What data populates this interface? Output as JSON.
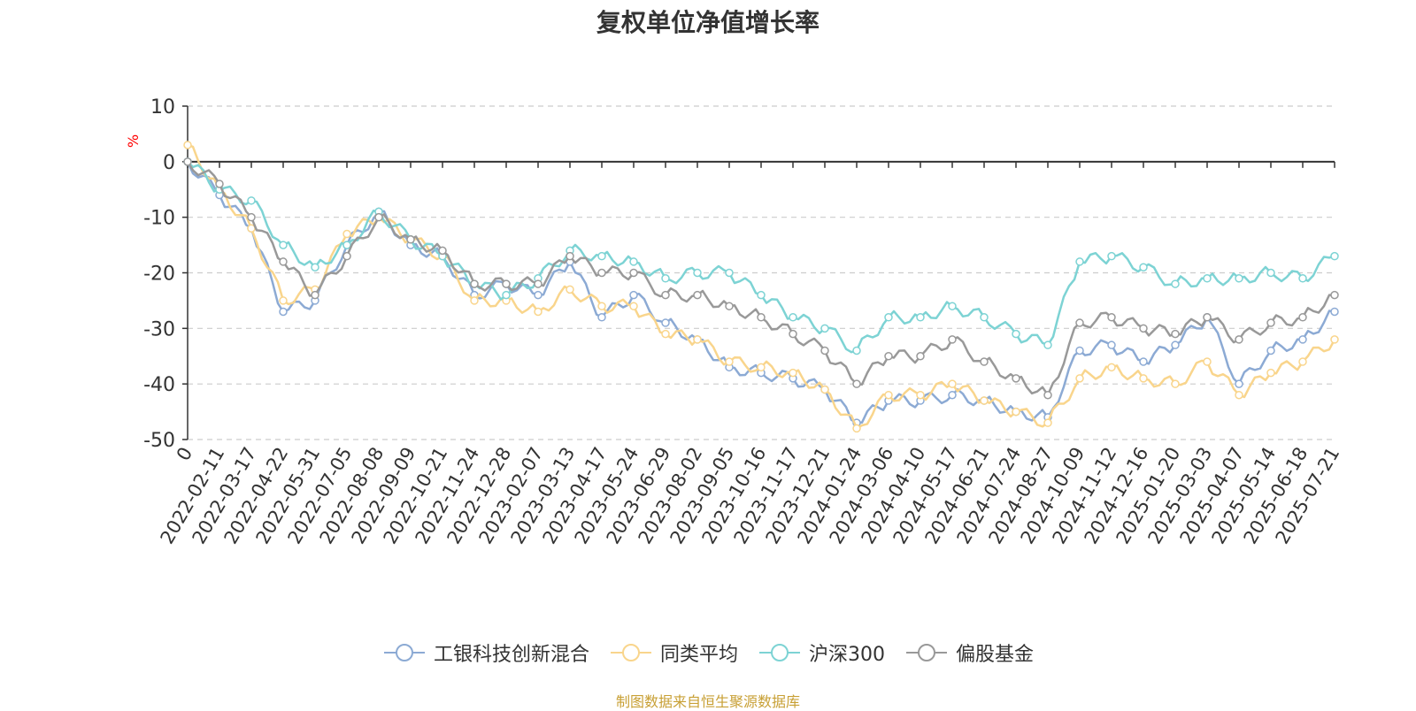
{
  "chart_data": {
    "type": "line",
    "title": "复权单位净值增长率",
    "unit_label": "%",
    "ylim": [
      -50,
      10
    ],
    "yticks": [
      "10",
      "0",
      "-10",
      "-20",
      "-30",
      "-40",
      "-50"
    ],
    "x_tick_labels": [
      "0",
      "2022-02-11",
      "2022-03-17",
      "2022-04-22",
      "2022-05-31",
      "2022-07-05",
      "2022-08-08",
      "2022-09-09",
      "2022-10-21",
      "2022-11-24",
      "2022-12-28",
      "2023-02-07",
      "2023-03-13",
      "2023-04-17",
      "2023-05-24",
      "2023-06-29",
      "2023-08-02",
      "2023-09-05",
      "2023-10-16",
      "2023-11-17",
      "2023-12-21",
      "2024-01-24",
      "2024-03-06",
      "2024-04-10",
      "2024-05-17",
      "2024-06-21",
      "2024-07-24",
      "2024-08-27",
      "2024-10-09",
      "2024-11-12",
      "2024-12-16",
      "2025-01-20",
      "2025-03-03",
      "2025-04-07",
      "2025-05-14",
      "2025-06-18",
      "2025-07-21"
    ],
    "grid": "horizontal-dashed",
    "legend_position": "bottom-center",
    "series": [
      {
        "name": "工银科技创新混合",
        "color": "#8caad4",
        "values": [
          0,
          -6,
          -12,
          -27,
          -25,
          -15,
          -9,
          -15,
          -17,
          -24,
          -22,
          -24,
          -18,
          -28,
          -24,
          -29,
          -32,
          -37,
          -38,
          -39,
          -41,
          -47,
          -43,
          -43,
          -42,
          -43,
          -45,
          -46,
          -34,
          -33,
          -36,
          -33,
          -28,
          -40,
          -34,
          -32,
          -27
        ]
      },
      {
        "name": "同类平均",
        "color": "#f9d58c",
        "values": [
          3,
          -5,
          -12,
          -25,
          -23,
          -13,
          -10,
          -14,
          -17,
          -25,
          -25,
          -27,
          -23,
          -26,
          -26,
          -31,
          -32,
          -36,
          -37,
          -38,
          -41,
          -48,
          -42,
          -42,
          -40,
          -43,
          -45,
          -47,
          -39,
          -37,
          -39,
          -40,
          -36,
          -42,
          -38,
          -36,
          -32
        ]
      },
      {
        "name": "沪深300",
        "color": "#7dd3d4",
        "values": [
          0,
          -5,
          -7,
          -15,
          -19,
          -15,
          -9,
          -14,
          -17,
          -22,
          -24,
          -21,
          -16,
          -17,
          -18,
          -21,
          -20,
          -20,
          -24,
          -28,
          -30,
          -34,
          -28,
          -28,
          -26,
          -28,
          -31,
          -33,
          -18,
          -17,
          -19,
          -22,
          -21,
          -21,
          -20,
          -21,
          -17
        ]
      },
      {
        "name": "偏股基金",
        "color": "#999999",
        "values": [
          0,
          -4,
          -10,
          -18,
          -24,
          -17,
          -10,
          -14,
          -16,
          -22,
          -22,
          -22,
          -17,
          -20,
          -20,
          -24,
          -24,
          -26,
          -28,
          -31,
          -34,
          -40,
          -35,
          -35,
          -32,
          -36,
          -39,
          -42,
          -29,
          -28,
          -30,
          -31,
          -28,
          -32,
          -29,
          -28,
          -24
        ]
      }
    ]
  },
  "footer": {
    "source": "制图数据来自恒生聚源数据库"
  }
}
